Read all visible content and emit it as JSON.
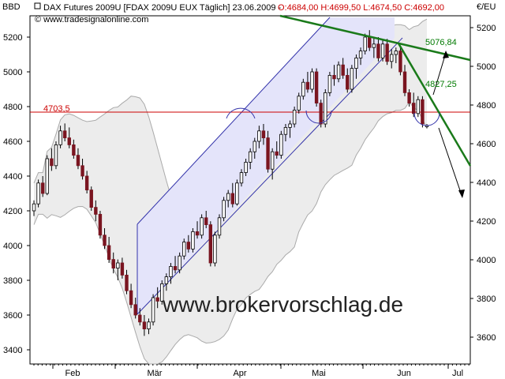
{
  "header": {
    "title": "DAX Futures 2009U [FDAX 2009U EUX  Täglich] 23.06.2009 -",
    "ohlc": "O:4684,00 H:4699,50 L:4674,50 C:4692,00",
    "copyright": "© www.tradesignalonline.com",
    "left_axis_label": "BBD",
    "right_axis_label": "€/EU"
  },
  "watermark": "www.brokervorschlag.de",
  "colors": {
    "up_candle": "#ffffff",
    "down_candle": "#7a1520",
    "channel_fill": "#e6e6fb",
    "bollinger_fill": "#eeeeee",
    "resistance_line": "#cc0000",
    "trend_line": "#1a7a1a"
  },
  "chart_data": {
    "type": "candlestick",
    "title": "DAX Futures 2009U [FDAX 2009U EUX  Täglich] 23.06.2009",
    "x_ticks": [
      "Feb",
      "Mär",
      "Apr",
      "Mai",
      "Jun",
      "Jul"
    ],
    "left_axis": {
      "label": "BBD",
      "ticks": [
        3400,
        3600,
        3800,
        4000,
        4200,
        4400,
        4600,
        4800,
        5000,
        5200
      ],
      "range": [
        3360,
        5330
      ]
    },
    "right_axis": {
      "label": "€/EU",
      "ticks": [
        3600,
        3800,
        4000,
        4200,
        4400,
        4600,
        4800,
        5000,
        5200
      ],
      "range": [
        3520,
        5330
      ]
    },
    "annotations": [
      {
        "text": "4703,5",
        "value": 4703.5
      },
      {
        "text": "4827,25",
        "value": 4827.25
      },
      {
        "text": "5076,84",
        "value": 5076.84
      }
    ],
    "resistance_level": 4703.5,
    "candles": [
      {
        "o": 4200,
        "h": 4260,
        "l": 4170,
        "c": 4240
      },
      {
        "o": 4240,
        "h": 4380,
        "l": 4220,
        "c": 4360
      },
      {
        "o": 4360,
        "h": 4400,
        "l": 4280,
        "c": 4300
      },
      {
        "o": 4300,
        "h": 4520,
        "l": 4290,
        "c": 4500
      },
      {
        "o": 4500,
        "h": 4560,
        "l": 4430,
        "c": 4460
      },
      {
        "o": 4460,
        "h": 4600,
        "l": 4440,
        "c": 4580
      },
      {
        "o": 4580,
        "h": 4690,
        "l": 4560,
        "c": 4660
      },
      {
        "o": 4660,
        "h": 4703,
        "l": 4600,
        "c": 4620
      },
      {
        "o": 4620,
        "h": 4680,
        "l": 4560,
        "c": 4580
      },
      {
        "o": 4580,
        "h": 4610,
        "l": 4500,
        "c": 4520
      },
      {
        "o": 4520,
        "h": 4560,
        "l": 4440,
        "c": 4460
      },
      {
        "o": 4460,
        "h": 4500,
        "l": 4380,
        "c": 4400
      },
      {
        "o": 4400,
        "h": 4430,
        "l": 4300,
        "c": 4320
      },
      {
        "o": 4320,
        "h": 4340,
        "l": 4200,
        "c": 4220
      },
      {
        "o": 4220,
        "h": 4260,
        "l": 4140,
        "c": 4180
      },
      {
        "o": 4180,
        "h": 4200,
        "l": 4040,
        "c": 4060
      },
      {
        "o": 4060,
        "h": 4100,
        "l": 3980,
        "c": 4000
      },
      {
        "o": 4000,
        "h": 4050,
        "l": 3900,
        "c": 3920
      },
      {
        "o": 3920,
        "h": 3960,
        "l": 3840,
        "c": 3870
      },
      {
        "o": 3870,
        "h": 3920,
        "l": 3800,
        "c": 3900
      },
      {
        "o": 3900,
        "h": 3930,
        "l": 3810,
        "c": 3830
      },
      {
        "o": 3830,
        "h": 3860,
        "l": 3720,
        "c": 3740
      },
      {
        "o": 3740,
        "h": 3780,
        "l": 3640,
        "c": 3660
      },
      {
        "o": 3660,
        "h": 3700,
        "l": 3580,
        "c": 3600
      },
      {
        "o": 3600,
        "h": 3640,
        "l": 3540,
        "c": 3560
      },
      {
        "o": 3560,
        "h": 3600,
        "l": 3480,
        "c": 3520
      },
      {
        "o": 3520,
        "h": 3580,
        "l": 3490,
        "c": 3560
      },
      {
        "o": 3560,
        "h": 3720,
        "l": 3540,
        "c": 3700
      },
      {
        "o": 3700,
        "h": 3760,
        "l": 3640,
        "c": 3680
      },
      {
        "o": 3680,
        "h": 3800,
        "l": 3660,
        "c": 3780
      },
      {
        "o": 3780,
        "h": 3840,
        "l": 3740,
        "c": 3820
      },
      {
        "o": 3820,
        "h": 3900,
        "l": 3780,
        "c": 3880
      },
      {
        "o": 3880,
        "h": 3940,
        "l": 3840,
        "c": 3860
      },
      {
        "o": 3860,
        "h": 3960,
        "l": 3840,
        "c": 3940
      },
      {
        "o": 3940,
        "h": 4040,
        "l": 3920,
        "c": 4020
      },
      {
        "o": 4020,
        "h": 4060,
        "l": 3960,
        "c": 3980
      },
      {
        "o": 3980,
        "h": 4100,
        "l": 3960,
        "c": 4080
      },
      {
        "o": 4080,
        "h": 4140,
        "l": 4040,
        "c": 4060
      },
      {
        "o": 4060,
        "h": 4180,
        "l": 4040,
        "c": 4160
      },
      {
        "o": 4160,
        "h": 4200,
        "l": 4100,
        "c": 4120
      },
      {
        "o": 4120,
        "h": 4140,
        "l": 3880,
        "c": 3900
      },
      {
        "o": 3900,
        "h": 4080,
        "l": 3880,
        "c": 4060
      },
      {
        "o": 4060,
        "h": 4180,
        "l": 4040,
        "c": 4160
      },
      {
        "o": 4160,
        "h": 4280,
        "l": 4140,
        "c": 4260
      },
      {
        "o": 4260,
        "h": 4320,
        "l": 4220,
        "c": 4300
      },
      {
        "o": 4300,
        "h": 4360,
        "l": 4220,
        "c": 4240
      },
      {
        "o": 4240,
        "h": 4380,
        "l": 4230,
        "c": 4360
      },
      {
        "o": 4360,
        "h": 4440,
        "l": 4340,
        "c": 4420
      },
      {
        "o": 4420,
        "h": 4500,
        "l": 4400,
        "c": 4480
      },
      {
        "o": 4480,
        "h": 4560,
        "l": 4440,
        "c": 4540
      },
      {
        "o": 4540,
        "h": 4620,
        "l": 4500,
        "c": 4600
      },
      {
        "o": 4600,
        "h": 4690,
        "l": 4560,
        "c": 4660
      },
      {
        "o": 4660,
        "h": 4700,
        "l": 4580,
        "c": 4620
      },
      {
        "o": 4620,
        "h": 4660,
        "l": 4420,
        "c": 4440
      },
      {
        "o": 4440,
        "h": 4560,
        "l": 4380,
        "c": 4540
      },
      {
        "o": 4540,
        "h": 4600,
        "l": 4500,
        "c": 4520
      },
      {
        "o": 4520,
        "h": 4660,
        "l": 4500,
        "c": 4640
      },
      {
        "o": 4640,
        "h": 4700,
        "l": 4600,
        "c": 4680
      },
      {
        "o": 4680,
        "h": 4720,
        "l": 4620,
        "c": 4700
      },
      {
        "o": 4700,
        "h": 4800,
        "l": 4680,
        "c": 4780
      },
      {
        "o": 4780,
        "h": 4880,
        "l": 4760,
        "c": 4860
      },
      {
        "o": 4860,
        "h": 4960,
        "l": 4840,
        "c": 4940
      },
      {
        "o": 4940,
        "h": 5000,
        "l": 4880,
        "c": 4900
      },
      {
        "o": 4900,
        "h": 5020,
        "l": 4880,
        "c": 5000
      },
      {
        "o": 5000,
        "h": 5020,
        "l": 4800,
        "c": 4820
      },
      {
        "o": 4820,
        "h": 4840,
        "l": 4680,
        "c": 4700
      },
      {
        "o": 4700,
        "h": 4900,
        "l": 4680,
        "c": 4880
      },
      {
        "o": 4880,
        "h": 5000,
        "l": 4860,
        "c": 4980
      },
      {
        "o": 4980,
        "h": 5040,
        "l": 4920,
        "c": 4960
      },
      {
        "o": 4960,
        "h": 5060,
        "l": 4940,
        "c": 5040
      },
      {
        "o": 5040,
        "h": 5080,
        "l": 4960,
        "c": 4980
      },
      {
        "o": 4980,
        "h": 5020,
        "l": 4880,
        "c": 4900
      },
      {
        "o": 4900,
        "h": 5040,
        "l": 4880,
        "c": 5020
      },
      {
        "o": 5020,
        "h": 5100,
        "l": 4960,
        "c": 5080
      },
      {
        "o": 5080,
        "h": 5140,
        "l": 5040,
        "c": 5120
      },
      {
        "o": 5120,
        "h": 5220,
        "l": 5100,
        "c": 5200
      },
      {
        "o": 5200,
        "h": 5240,
        "l": 5120,
        "c": 5140
      },
      {
        "o": 5140,
        "h": 5200,
        "l": 5080,
        "c": 5160
      },
      {
        "o": 5160,
        "h": 5200,
        "l": 5060,
        "c": 5080
      },
      {
        "o": 5080,
        "h": 5180,
        "l": 5060,
        "c": 5160
      },
      {
        "o": 5160,
        "h": 5190,
        "l": 5040,
        "c": 5060
      },
      {
        "o": 5060,
        "h": 5130,
        "l": 5020,
        "c": 5100
      },
      {
        "o": 5100,
        "h": 5140,
        "l": 5050,
        "c": 5120
      },
      {
        "o": 5120,
        "h": 5150,
        "l": 4980,
        "c": 5000
      },
      {
        "o": 5000,
        "h": 5040,
        "l": 4860,
        "c": 4880
      },
      {
        "o": 4880,
        "h": 4900,
        "l": 4800,
        "c": 4820
      },
      {
        "o": 4820,
        "h": 4880,
        "l": 4740,
        "c": 4760
      },
      {
        "o": 4760,
        "h": 4860,
        "l": 4740,
        "c": 4840
      },
      {
        "o": 4840,
        "h": 4860,
        "l": 4680,
        "c": 4700
      },
      {
        "o": 4684,
        "h": 4699.5,
        "l": 4674.5,
        "c": 4692
      }
    ]
  }
}
